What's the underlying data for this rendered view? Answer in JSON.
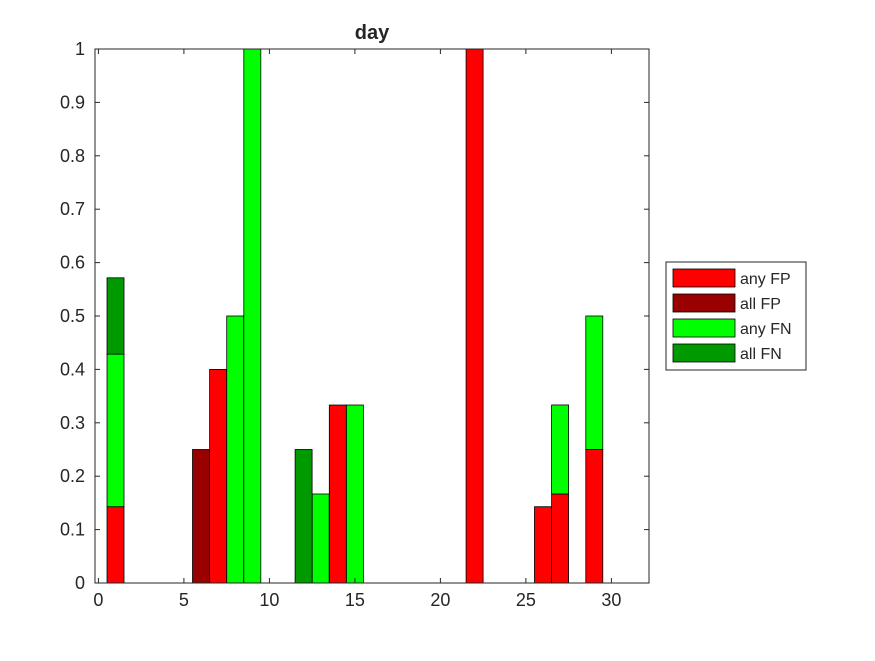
{
  "chart_data": {
    "type": "bar",
    "title": "day",
    "xlabel": "",
    "ylabel": "",
    "xlim": [
      -0.2,
      32.2
    ],
    "ylim": [
      0,
      1
    ],
    "xticks": [
      0,
      5,
      10,
      15,
      20,
      25,
      30
    ],
    "yticks": [
      0,
      0.1,
      0.2,
      0.3,
      0.4,
      0.5,
      0.6,
      0.7,
      0.8,
      0.9,
      1
    ],
    "xtick_labels": [
      "0",
      "5",
      "10",
      "15",
      "20",
      "25",
      "30"
    ],
    "ytick_labels": [
      "0",
      "0.1",
      "0.2",
      "0.3",
      "0.4",
      "0.5",
      "0.6",
      "0.7",
      "0.8",
      "0.9",
      "1"
    ],
    "stacked": true,
    "grid": false,
    "legend_position": "outside-right",
    "x": [
      1,
      6,
      7,
      8,
      9,
      12,
      13,
      14,
      15,
      22,
      26,
      27,
      29
    ],
    "series": [
      {
        "name": "any FP",
        "color": "#FF0000",
        "values": [
          0.1429,
          0,
          0.4,
          0,
          0,
          0,
          0,
          0.3333,
          0,
          1,
          0.1429,
          0.1667,
          0.25
        ]
      },
      {
        "name": "all FP",
        "color": "#990000",
        "values": [
          0,
          0.25,
          0,
          0,
          0,
          0,
          0,
          0,
          0,
          0,
          0,
          0,
          0
        ]
      },
      {
        "name": "any FN",
        "color": "#00FF00",
        "values": [
          0.2857,
          0,
          0,
          0.5,
          1,
          0,
          0.1667,
          0,
          0.3333,
          0,
          0,
          0.1667,
          0.25
        ]
      },
      {
        "name": "all FN",
        "color": "#009900",
        "values": [
          0.1429,
          0,
          0,
          0,
          0,
          0.25,
          0,
          0,
          0,
          0,
          0,
          0,
          0
        ]
      }
    ]
  }
}
